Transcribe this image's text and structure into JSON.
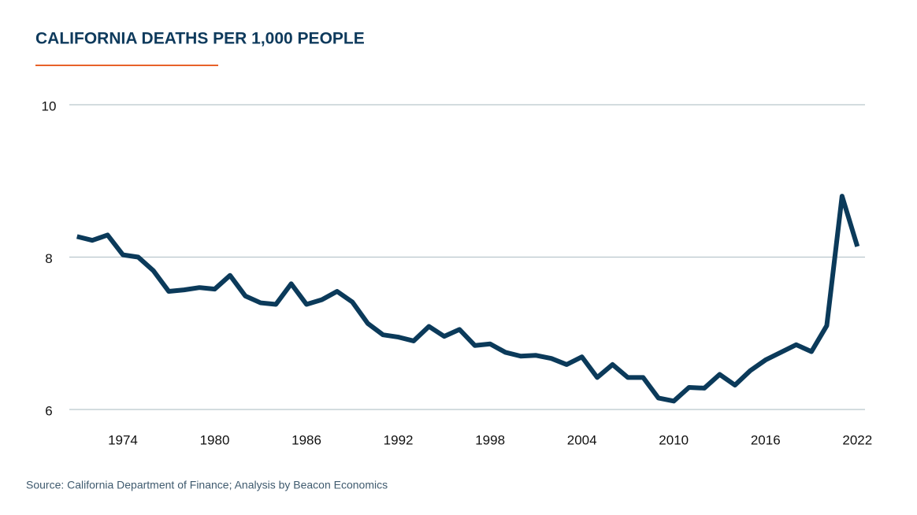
{
  "chart_data": {
    "type": "line",
    "title": "CALIFORNIA DEATHS PER 1,000 PEOPLE",
    "source": "Source: California Department of Finance; Analysis by Beacon Economics",
    "x": [
      1971,
      1972,
      1973,
      1974,
      1975,
      1976,
      1977,
      1978,
      1979,
      1980,
      1981,
      1982,
      1983,
      1984,
      1985,
      1986,
      1987,
      1988,
      1989,
      1990,
      1991,
      1992,
      1993,
      1994,
      1995,
      1996,
      1997,
      1998,
      1999,
      2000,
      2001,
      2002,
      2003,
      2004,
      2005,
      2006,
      2007,
      2008,
      2009,
      2010,
      2011,
      2012,
      2013,
      2014,
      2015,
      2016,
      2017,
      2018,
      2019,
      2020,
      2021,
      2022
    ],
    "series": [
      {
        "name": "Deaths per 1,000 people",
        "color": "#0b3a5a",
        "values": [
          8.27,
          8.22,
          8.29,
          8.03,
          8.0,
          7.82,
          7.55,
          7.57,
          7.6,
          7.58,
          7.76,
          7.49,
          7.4,
          7.38,
          7.65,
          7.38,
          7.44,
          7.55,
          7.41,
          7.13,
          6.98,
          6.95,
          6.9,
          7.09,
          6.96,
          7.05,
          6.84,
          6.86,
          6.75,
          6.7,
          6.71,
          6.67,
          6.59,
          6.69,
          6.42,
          6.59,
          6.42,
          6.42,
          6.15,
          6.11,
          6.29,
          6.28,
          6.46,
          6.32,
          6.51,
          6.65,
          6.75,
          6.85,
          6.76,
          7.1,
          8.8,
          8.14
        ]
      }
    ],
    "xlim": [
      1970.5,
      2022.5
    ],
    "xticks": [
      1974,
      1980,
      1986,
      1992,
      1998,
      2004,
      2010,
      2016,
      2022
    ],
    "ylim": [
      6,
      10
    ],
    "yticks": [
      6,
      8,
      10
    ],
    "grid": true
  }
}
